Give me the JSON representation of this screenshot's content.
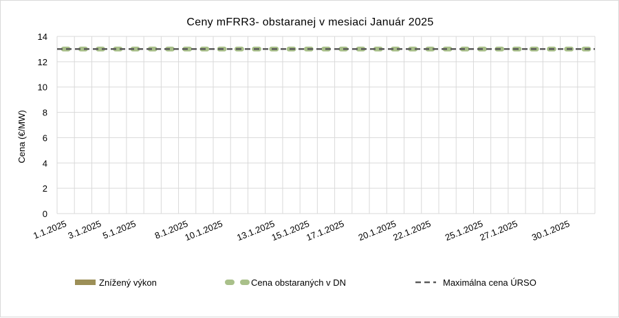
{
  "chart_data": {
    "type": "line",
    "title": "Ceny mFRR3- obstaranej v mesiaci Január 2025",
    "ylabel": "Cena (€/MW)",
    "xlabel": "",
    "ylim": [
      0,
      14
    ],
    "yticks": [
      0,
      2,
      4,
      6,
      8,
      10,
      12,
      14
    ],
    "grid": true,
    "legend_position": "bottom",
    "x": [
      "1.1.2025",
      "2.1.2025",
      "3.1.2025",
      "4.1.2025",
      "5.1.2025",
      "6.1.2025",
      "7.1.2025",
      "8.1.2025",
      "9.1.2025",
      "10.1.2025",
      "11.1.2025",
      "12.1.2025",
      "13.1.2025",
      "14.1.2025",
      "15.1.2025",
      "16.1.2025",
      "17.1.2025",
      "18.1.2025",
      "19.1.2025",
      "20.1.2025",
      "21.1.2025",
      "22.1.2025",
      "23.1.2025",
      "24.1.2025",
      "25.1.2025",
      "26.1.2025",
      "27.1.2025",
      "28.1.2025",
      "29.1.2025",
      "30.1.2025",
      "31.1.2025"
    ],
    "xtick_labels": [
      "1.1.2025",
      "3.1.2025",
      "5.1.2025",
      "8.1.2025",
      "10.1.2025",
      "13.1.2025",
      "15.1.2025",
      "17.1.2025",
      "20.1.2025",
      "22.1.2025",
      "25.1.2025",
      "27.1.2025",
      "30.1.2025"
    ],
    "series": [
      {
        "name": "Znížený výkon",
        "type": "bar",
        "color": "#9c8f57",
        "values": [
          0,
          0,
          0,
          0,
          0,
          0,
          0,
          0,
          0,
          0,
          0,
          0,
          0,
          0,
          0,
          0,
          0,
          0,
          0,
          0,
          0,
          0,
          0,
          0,
          0,
          0,
          0,
          0,
          0,
          0,
          0
        ]
      },
      {
        "name": "Cena obstaraných v DN",
        "type": "line",
        "color": "#a9c08a",
        "values": [
          13,
          13,
          13,
          13,
          13,
          13,
          13,
          13,
          13,
          13,
          13,
          13,
          13,
          13,
          13,
          13,
          13,
          13,
          13,
          13,
          13,
          13,
          13,
          13,
          13,
          13,
          13,
          13,
          13,
          13,
          13
        ]
      },
      {
        "name": "Maximálna cena ÚRSO",
        "type": "line",
        "color": "#595959",
        "dash": true,
        "values": [
          13,
          13,
          13,
          13,
          13,
          13,
          13,
          13,
          13,
          13,
          13,
          13,
          13,
          13,
          13,
          13,
          13,
          13,
          13,
          13,
          13,
          13,
          13,
          13,
          13,
          13,
          13,
          13,
          13,
          13,
          13
        ]
      }
    ]
  }
}
